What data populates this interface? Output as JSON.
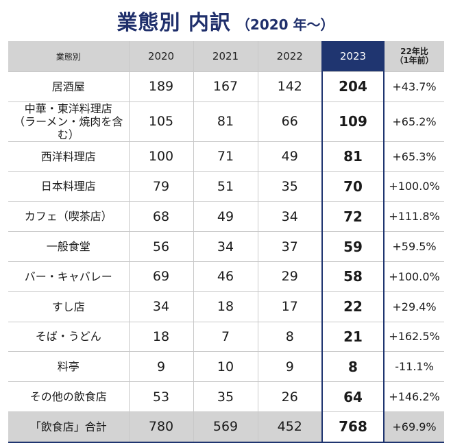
{
  "title": {
    "main": "業態別 内訳",
    "sub": "（2020 年～）"
  },
  "table": {
    "headers": {
      "category": "業態別",
      "y2020": "2020",
      "y2021": "2021",
      "y2022": "2022",
      "y2023": "2023",
      "ratio_line1": "22年比",
      "ratio_line2": "（1年前）"
    },
    "rows": [
      {
        "label": "居酒屋",
        "label2": "",
        "y2020": "189",
        "y2021": "167",
        "y2022": "142",
        "y2023": "204",
        "ratio": "+43.7%"
      },
      {
        "label": "中華・東洋料理店",
        "label2": "（ラーメン・焼肉を含む）",
        "y2020": "105",
        "y2021": "81",
        "y2022": "66",
        "y2023": "109",
        "ratio": "+65.2%"
      },
      {
        "label": "西洋料理店",
        "label2": "",
        "y2020": "100",
        "y2021": "71",
        "y2022": "49",
        "y2023": "81",
        "ratio": "+65.3%"
      },
      {
        "label": "日本料理店",
        "label2": "",
        "y2020": "79",
        "y2021": "51",
        "y2022": "35",
        "y2023": "70",
        "ratio": "+100.0%"
      },
      {
        "label": "カフェ（喫茶店）",
        "label2": "",
        "y2020": "68",
        "y2021": "49",
        "y2022": "34",
        "y2023": "72",
        "ratio": "+111.8%"
      },
      {
        "label": "一般食堂",
        "label2": "",
        "y2020": "56",
        "y2021": "34",
        "y2022": "37",
        "y2023": "59",
        "ratio": "+59.5%"
      },
      {
        "label": "バー・キャバレー",
        "label2": "",
        "y2020": "69",
        "y2021": "46",
        "y2022": "29",
        "y2023": "58",
        "ratio": "+100.0%"
      },
      {
        "label": "すし店",
        "label2": "",
        "y2020": "34",
        "y2021": "18",
        "y2022": "17",
        "y2023": "22",
        "ratio": "+29.4%"
      },
      {
        "label": "そば・うどん",
        "label2": "",
        "y2020": "18",
        "y2021": "7",
        "y2022": "8",
        "y2023": "21",
        "ratio": "+162.5%"
      },
      {
        "label": "料亭",
        "label2": "",
        "y2020": "9",
        "y2021": "10",
        "y2022": "9",
        "y2023": "8",
        "ratio": "-11.1%"
      },
      {
        "label": "その他の飲食店",
        "label2": "",
        "y2020": "53",
        "y2021": "35",
        "y2022": "26",
        "y2023": "64",
        "ratio": "+146.2%"
      }
    ],
    "total": {
      "label": "「飲食店」合計",
      "y2020": "780",
      "y2021": "569",
      "y2022": "452",
      "y2023": "768",
      "ratio": "+69.9%"
    }
  }
}
